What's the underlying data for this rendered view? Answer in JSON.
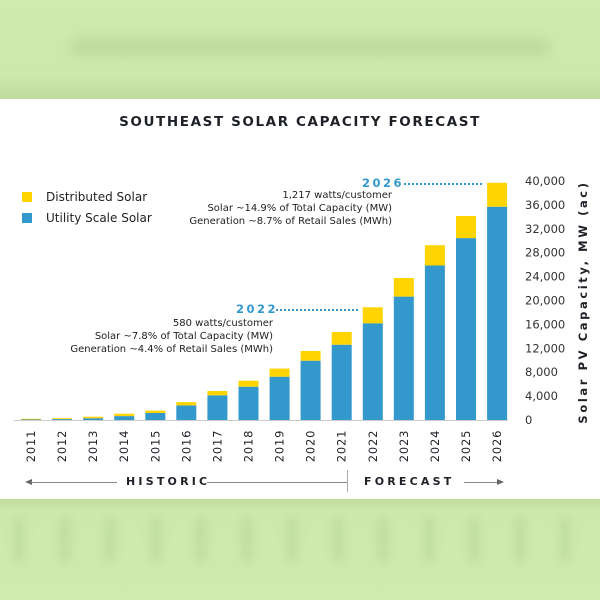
{
  "colors": {
    "distributed": "#FFD400",
    "utility": "#3399CC",
    "accent": "#3399CC",
    "background": "#CFEAB0",
    "panel": "#FFFFFF"
  },
  "chart_data": {
    "type": "bar",
    "stacked": true,
    "title": "SOUTHEAST SOLAR CAPACITY FORECAST",
    "xlabel": "",
    "ylabel": "Solar PV Capacity, MW (ac)",
    "ylim": [
      0,
      40000
    ],
    "yticks": [
      "0",
      "4,000",
      "8,000",
      "12,000",
      "16,000",
      "20,000",
      "24,000",
      "28,000",
      "32,000",
      "36,000",
      "40,000"
    ],
    "ytick_values": [
      0,
      4000,
      8000,
      12000,
      16000,
      20000,
      24000,
      28000,
      32000,
      36000,
      40000
    ],
    "yaxis_side": "right",
    "grid": false,
    "legend_position": "top-left",
    "categories": [
      "2011",
      "2012",
      "2013",
      "2014",
      "2015",
      "2016",
      "2017",
      "2018",
      "2019",
      "2020",
      "2021",
      "2022",
      "2023",
      "2024",
      "2025",
      "2026"
    ],
    "series": [
      {
        "name": "Utility Scale Solar",
        "color": "#3399CC",
        "values": [
          80,
          150,
          300,
          650,
          1170,
          2450,
          4130,
          5570,
          7250,
          9930,
          12600,
          16200,
          20650,
          25850,
          30450,
          35700
        ]
      },
      {
        "name": "Distributed Solar",
        "color": "#FFD400",
        "values": [
          120,
          150,
          250,
          400,
          400,
          550,
          720,
          1000,
          1350,
          1620,
          2130,
          2670,
          3120,
          3400,
          3700,
          4000
        ]
      }
    ],
    "annotations": [
      {
        "year": "2022",
        "lines": [
          "580 watts/customer",
          "Solar ~7.8% of Total Capacity (MW)",
          "Generation ~4.4% of Retail Sales (MWh)"
        ]
      },
      {
        "year": "2026",
        "lines": [
          "1,217 watts/customer",
          "Solar ~14.9% of Total Capacity (MW)",
          "Generation ~8.7% of Retail Sales (MWh)"
        ]
      }
    ],
    "periods": [
      {
        "label": "HISTORIC",
        "range": [
          "2011",
          "2021"
        ],
        "direction": "left"
      },
      {
        "label": "FORECAST",
        "range": [
          "2022",
          "2026"
        ],
        "direction": "right"
      }
    ]
  }
}
